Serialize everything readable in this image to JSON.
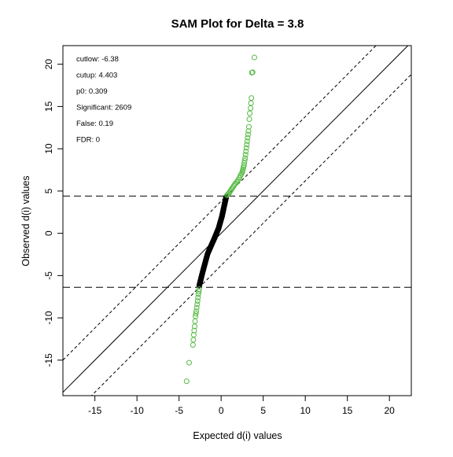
{
  "chart_data": {
    "type": "scatter",
    "title": "SAM Plot for Delta = 3.8",
    "xlabel": "Expected d(i) values",
    "ylabel": "Observed d(i) values",
    "xlim": [
      -18.8,
      22.6
    ],
    "ylim": [
      -19.2,
      22.2
    ],
    "x_ticks": [
      -15,
      -10,
      -5,
      0,
      5,
      10,
      15,
      20
    ],
    "y_ticks": [
      -15,
      -10,
      -5,
      0,
      5,
      10,
      15,
      20
    ],
    "grid": false,
    "legend": null,
    "stats": [
      {
        "label": "cutlow:",
        "value": "-6.38"
      },
      {
        "label": "cutup:",
        "value": "4.403"
      },
      {
        "label": "p0:",
        "value": "0.309"
      },
      {
        "label": "Significant:",
        "value": "2609"
      },
      {
        "label": "False:",
        "value": "0.19"
      },
      {
        "label": "FDR:",
        "value": "0"
      }
    ],
    "reference_lines": {
      "identity": {
        "slope": 1,
        "intercept": 0,
        "style": "solid"
      },
      "delta_upper": {
        "slope": 1,
        "intercept": 3.8,
        "style": "dashed"
      },
      "delta_lower": {
        "slope": 1,
        "intercept": -3.8,
        "style": "dashed"
      },
      "cut_upper": {
        "y": 4.403,
        "style": "longdash"
      },
      "cut_lower": {
        "y": -6.38,
        "style": "longdash"
      }
    },
    "series": [
      {
        "color": "#000000",
        "marker": "circle-open",
        "segment": [
          [
            -2.6,
            -6.2
          ],
          [
            -2.2,
            -4.6
          ],
          [
            -1.6,
            -2.4
          ],
          [
            -0.8,
            -0.6
          ],
          [
            -0.3,
            0.6
          ],
          [
            0.1,
            2.0
          ],
          [
            0.4,
            3.4
          ],
          [
            0.6,
            4.3
          ]
        ]
      },
      {
        "color": "#55bb44",
        "marker": "circle-open",
        "points": [
          [
            0.7,
            4.5
          ],
          [
            0.8,
            4.6
          ],
          [
            0.9,
            4.7
          ],
          [
            1.0,
            4.85
          ],
          [
            1.1,
            5.0
          ],
          [
            1.2,
            5.15
          ],
          [
            1.3,
            5.3
          ],
          [
            1.4,
            5.45
          ],
          [
            1.5,
            5.6
          ],
          [
            1.6,
            5.75
          ],
          [
            1.7,
            5.9
          ],
          [
            1.85,
            6.05
          ],
          [
            1.95,
            6.2
          ],
          [
            2.05,
            6.35
          ],
          [
            2.2,
            6.6
          ],
          [
            2.3,
            6.85
          ],
          [
            2.4,
            7.0
          ],
          [
            2.5,
            7.2
          ],
          [
            2.55,
            7.4
          ],
          [
            2.6,
            7.6
          ],
          [
            2.65,
            7.8
          ],
          [
            2.7,
            8.0
          ],
          [
            2.75,
            8.3
          ],
          [
            2.8,
            8.6
          ],
          [
            2.85,
            8.9
          ],
          [
            2.9,
            9.3
          ],
          [
            2.95,
            9.7
          ],
          [
            3.0,
            10.1
          ],
          [
            3.05,
            10.5
          ],
          [
            3.1,
            10.9
          ],
          [
            3.15,
            11.3
          ],
          [
            3.2,
            11.7
          ],
          [
            3.25,
            12.1
          ],
          [
            3.3,
            12.6
          ],
          [
            3.35,
            13.5
          ],
          [
            3.4,
            14.2
          ],
          [
            3.5,
            14.8
          ],
          [
            3.55,
            15.4
          ],
          [
            3.6,
            16.0
          ],
          [
            3.65,
            19.0
          ],
          [
            3.75,
            19.05
          ],
          [
            3.95,
            20.8
          ],
          [
            -2.6,
            -6.6
          ],
          [
            -2.65,
            -6.9
          ],
          [
            -2.7,
            -7.2
          ],
          [
            -2.75,
            -7.6
          ],
          [
            -2.8,
            -8.0
          ],
          [
            -2.85,
            -8.4
          ],
          [
            -2.9,
            -8.8
          ],
          [
            -2.95,
            -9.2
          ],
          [
            -3.0,
            -9.5
          ],
          [
            -3.05,
            -9.8
          ],
          [
            -3.1,
            -10.4
          ],
          [
            -3.15,
            -11.0
          ],
          [
            -3.2,
            -11.5
          ],
          [
            -3.25,
            -12.0
          ],
          [
            -3.3,
            -12.6
          ],
          [
            -3.35,
            -13.2
          ],
          [
            -3.8,
            -15.3
          ],
          [
            -4.1,
            -17.5
          ]
        ]
      }
    ]
  }
}
